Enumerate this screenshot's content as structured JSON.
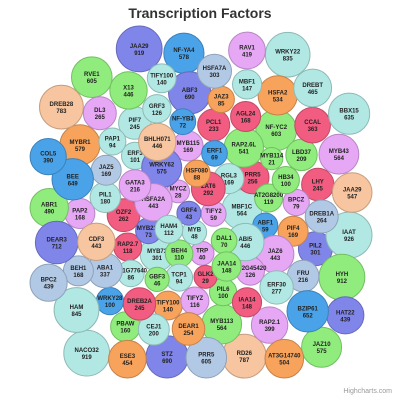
{
  "chart_data": {
    "type": "packed-bubble",
    "title": "Transcription Factors",
    "credits": "Highcharts.com",
    "palette": [
      "#7cb5ec",
      "#90ed7d",
      "#f7a35c",
      "#8085e9",
      "#f15c80",
      "#e4d354",
      "#2b908f",
      "#f45b5b",
      "#91e8e1",
      "#e6a8f5",
      "#4aa3e8",
      "#b2c9e6"
    ],
    "bubbles": [
      {
        "name": "NACO32",
        "value": 919,
        "color": "#b2e8e4"
      },
      {
        "name": "NF-YA4",
        "value": 578,
        "color": "#4aa3e8"
      },
      {
        "name": "MYB43",
        "value": 564,
        "color": "#e6a8f5"
      },
      {
        "name": "RD26",
        "value": 787,
        "color": "#f7c59f"
      },
      {
        "name": "MYBR1",
        "value": 579,
        "color": "#f7a35c"
      },
      {
        "name": "JAA29",
        "value": 919,
        "color": "#8085e9"
      },
      {
        "name": "MYB113",
        "value": 564,
        "color": "#90ed7d"
      },
      {
        "name": "OZF2",
        "value": 262,
        "color": "#f15c80"
      },
      {
        "name": "NF-YC2",
        "value": 603,
        "color": "#90ed7d"
      },
      {
        "name": "STZ",
        "value": 690,
        "color": "#8085e9"
      },
      {
        "name": "PIF7",
        "value": 245,
        "color": "#b2e8e4"
      },
      {
        "name": "PRR5",
        "value": 605,
        "color": "#b2c9e6"
      },
      {
        "name": "PAP2",
        "value": 168,
        "color": "#e6a8f5"
      },
      {
        "name": "PCL1",
        "value": 233,
        "color": "#f15c80"
      },
      {
        "name": "RAP2.1",
        "value": 399,
        "color": "#e6a8f5"
      },
      {
        "name": "PIL2",
        "value": 301,
        "color": "#8085e9"
      },
      {
        "name": "RVE1",
        "value": 605,
        "color": "#90ed7d"
      },
      {
        "name": "X13",
        "value": 446,
        "color": "#90ed7d"
      },
      {
        "name": "IAAT",
        "value": 926,
        "color": "#b2e8e4"
      },
      {
        "name": "MBF1C",
        "value": 564,
        "color": "#b2e8e4"
      },
      {
        "name": "PIL1",
        "value": 180,
        "color": "#b2e8e4"
      },
      {
        "name": "MYB73",
        "value": 301,
        "color": "#b2e8e4"
      },
      {
        "name": "LHY",
        "value": 245,
        "color": "#f15c80"
      },
      {
        "name": "WRKY22",
        "value": 835,
        "color": "#b2e8e4"
      },
      {
        "name": "PIF4",
        "value": 169,
        "color": "#f7a35c"
      },
      {
        "name": "PRR5",
        "value": 256,
        "color": "#f15c80"
      },
      {
        "name": "TIFY100",
        "value": 140,
        "color": "#f7a35c"
      },
      {
        "name": "RAP2.6L",
        "value": 541,
        "color": "#90ed7d"
      },
      {
        "name": "ABF1",
        "value": 59,
        "color": "#4aa3e8"
      },
      {
        "name": "HSFA2",
        "value": 534,
        "color": "#f7a35c"
      },
      {
        "name": "JAZ10",
        "value": 575,
        "color": "#90ed7d"
      },
      {
        "name": "PIL6",
        "value": 100,
        "color": "#90ed7d"
      },
      {
        "name": "TIFY2",
        "value": 59,
        "color": "#e6a8f5"
      },
      {
        "name": "TIFYZ",
        "value": 116,
        "color": "#e6a8f5"
      },
      {
        "name": "ABF3",
        "value": 690,
        "color": "#8085e9"
      },
      {
        "name": "JAZ6",
        "value": 443,
        "color": "#e6a8f5"
      },
      {
        "name": "MYB115",
        "value": 169,
        "color": "#e6a8f5"
      },
      {
        "name": "RAP2.7",
        "value": 118,
        "color": "#f15c80"
      },
      {
        "name": "RGL3",
        "value": 169,
        "color": "#b2e8e4"
      },
      {
        "name": "AT2G8200",
        "value": 119,
        "color": "#90ed7d"
      },
      {
        "name": "AGL24",
        "value": 168,
        "color": "#f15c80"
      },
      {
        "name": "HYH",
        "value": 912,
        "color": "#90ed7d"
      },
      {
        "name": "LBD37",
        "value": 209,
        "color": "#90ed7d"
      },
      {
        "name": "PBAW",
        "value": 160,
        "color": "#90ed7d"
      },
      {
        "name": "WRKY28",
        "value": 100,
        "color": "#4aa3e8"
      },
      {
        "name": "ZAT6",
        "value": 292,
        "color": "#f15c80"
      },
      {
        "name": "AT1G77640",
        "value": 86,
        "color": "#b2e8e4"
      },
      {
        "name": "ABR1",
        "value": 490,
        "color": "#90ed7d"
      },
      {
        "name": "JAA29",
        "value": 547,
        "color": "#f7c59f"
      },
      {
        "name": "MBF1",
        "value": 147,
        "color": "#b2e8e4"
      },
      {
        "name": "NF-YB3",
        "value": 72,
        "color": "#4aa3e8"
      },
      {
        "name": "TRP",
        "value": 40,
        "color": "#e6a8f5"
      },
      {
        "name": "MYCZ",
        "value": 28,
        "color": "#e6a8f5"
      },
      {
        "name": "ABA1",
        "value": 337,
        "color": "#b2c9e6"
      },
      {
        "name": "RAV1",
        "value": 419,
        "color": "#e6a8f5"
      },
      {
        "name": "AT2G45420",
        "value": 126,
        "color": "#e6a8f5"
      },
      {
        "name": "BEH4",
        "value": 110,
        "color": "#90ed7d"
      },
      {
        "name": "HAM",
        "value": 845,
        "color": "#b2e8e4"
      },
      {
        "name": "TCP1",
        "value": 94,
        "color": "#b2e8e4"
      },
      {
        "name": "MYB",
        "value": 48,
        "color": "#b2e8e4"
      },
      {
        "name": "ERF3",
        "value": 101,
        "color": "#b2e8e4"
      },
      {
        "name": "MYB214",
        "value": 73,
        "color": "#8085e9"
      },
      {
        "name": "ABI5",
        "value": 446,
        "color": "#b2e8e4"
      },
      {
        "name": "WRKY62",
        "value": 575,
        "color": "#8085e9"
      },
      {
        "name": "BPCZ",
        "value": 79,
        "color": "#e6a8f5"
      },
      {
        "name": "AT3G14740",
        "value": 504,
        "color": "#f7a35c"
      },
      {
        "name": "HAT22",
        "value": 439,
        "color": "#8085e9"
      },
      {
        "name": "PAP1",
        "value": 94,
        "color": "#b2e8e4"
      },
      {
        "name": "IAA14",
        "value": 148,
        "color": "#f15c80"
      },
      {
        "name": "JAZ3",
        "value": 85,
        "color": "#f7a35c"
      },
      {
        "name": "TIFY100",
        "value": 140,
        "color": "#b2e8e4"
      },
      {
        "name": "DAL1",
        "value": 70,
        "color": "#90ed7d"
      },
      {
        "name": "BEH1",
        "value": 168,
        "color": "#b2c9e6"
      },
      {
        "name": "HSF080",
        "value": 88,
        "color": "#f7a35c"
      },
      {
        "name": "HSFA2A",
        "value": 443,
        "color": "#e6a8f5"
      },
      {
        "name": "GRF3",
        "value": 126,
        "color": "#b2e8e4"
      },
      {
        "name": "GLK2",
        "value": 29,
        "color": "#f15c80"
      },
      {
        "name": "ERF1",
        "value": 69,
        "color": "#4aa3e8"
      },
      {
        "name": "BHLH071",
        "value": 446,
        "color": "#f7c59f"
      },
      {
        "name": "DREB28",
        "value": 783,
        "color": "#f7c59f"
      },
      {
        "name": "ESE3",
        "value": 454,
        "color": "#f7a35c"
      },
      {
        "name": "JAZ5",
        "value": 169,
        "color": "#b2c9e6"
      },
      {
        "name": "FRU",
        "value": 216,
        "color": "#b2c9e6"
      },
      {
        "name": "GRF4",
        "value": 43,
        "color": "#8085e9"
      },
      {
        "name": "DEAR1",
        "value": 254,
        "color": "#f7a35c"
      },
      {
        "name": "CEJ1",
        "value": 200,
        "color": "#b2e8e4"
      },
      {
        "name": "HSFA7A",
        "value": 303,
        "color": "#b2c9e6"
      },
      {
        "name": "HAM4",
        "value": 112,
        "color": "#b2e8e4"
      },
      {
        "name": "JAA14",
        "value": 148,
        "color": "#90ed7d"
      },
      {
        "name": "HB34",
        "value": 100,
        "color": "#90ed7d"
      },
      {
        "name": "GBF3",
        "value": 46,
        "color": "#90ed7d"
      },
      {
        "name": "DEAR3",
        "value": 712,
        "color": "#8085e9"
      },
      {
        "name": "ERF30",
        "value": 277,
        "color": "#b2e8e4"
      },
      {
        "name": "MYB114",
        "value": 21,
        "color": "#90ed7d"
      },
      {
        "name": "BPC2",
        "value": 439,
        "color": "#b2c9e6"
      },
      {
        "name": "BEE",
        "value": 649,
        "color": "#4aa3e8"
      },
      {
        "name": "GATA3",
        "value": 216,
        "color": "#e6a8f5"
      },
      {
        "name": "DREB2A",
        "value": 245,
        "color": "#f15c80"
      },
      {
        "name": "DL3",
        "value": 265,
        "color": "#e6a8f5"
      },
      {
        "name": "CCAL",
        "value": 363,
        "color": "#f15c80"
      },
      {
        "name": "DREB1A",
        "value": 264,
        "color": "#b2c9e6"
      },
      {
        "name": "DREBT",
        "value": 465,
        "color": "#b2e8e4"
      },
      {
        "name": "CDF3",
        "value": 443,
        "color": "#f7c59f"
      },
      {
        "name": "BBX15",
        "value": 635,
        "color": "#b2e8e4"
      },
      {
        "name": "BZIP61",
        "value": 652,
        "color": "#4aa3e8"
      },
      {
        "name": "COL5",
        "value": 390,
        "color": "#4aa3e8"
      }
    ]
  }
}
